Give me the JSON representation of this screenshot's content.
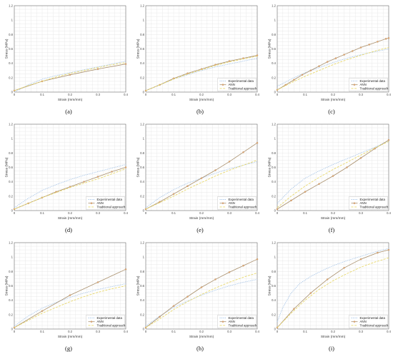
{
  "figure": {
    "colors": {
      "experimental": "#9fc0e6",
      "ann": "#a88e6a",
      "ann_marker": "#e9a56c",
      "traditional": "#e8d86c",
      "grid": "#e3e3e3",
      "axis": "#555555"
    }
  },
  "chart_data": [
    {
      "type": "line",
      "panel": "(a)",
      "xlabel": "Strain (mm/mm)",
      "ylabel": "Stress (MPa)",
      "xlim": [
        0,
        0.4
      ],
      "ylim": [
        0,
        1.2
      ],
      "xticks": [
        "0",
        "0.1",
        "0.2",
        "0.3",
        "0.4"
      ],
      "yticks": [
        "0",
        "0.2",
        "0.4",
        "0.6",
        "0.8",
        "1",
        "1.2"
      ],
      "grid": true,
      "legend": "none",
      "series": [
        {
          "name": "Experimental data",
          "style": "dotted",
          "x": [
            0,
            0.05,
            0.1,
            0.15,
            0.2,
            0.25,
            0.3,
            0.35,
            0.4
          ],
          "y": [
            0,
            0.1,
            0.18,
            0.23,
            0.27,
            0.31,
            0.35,
            0.39,
            0.43
          ]
        },
        {
          "name": "ANN",
          "style": "solid-marker",
          "x": [
            0,
            0.1,
            0.2,
            0.3,
            0.4
          ],
          "y": [
            0.02,
            0.15,
            0.24,
            0.32,
            0.39
          ]
        },
        {
          "name": "Traditional approach",
          "style": "dashed",
          "x": [
            0,
            0.05,
            0.1,
            0.15,
            0.2,
            0.25,
            0.3,
            0.35,
            0.4
          ],
          "y": [
            0.02,
            0.09,
            0.15,
            0.21,
            0.26,
            0.3,
            0.34,
            0.38,
            0.41
          ]
        }
      ]
    },
    {
      "type": "line",
      "panel": "(b)",
      "xlabel": "Strain (mm/mm)",
      "ylabel": "Stress (MPa)",
      "xlim": [
        0,
        0.4
      ],
      "ylim": [
        0,
        1.2
      ],
      "xticks": [
        "0",
        "0.1",
        "0.2",
        "0.3",
        "0.4"
      ],
      "yticks": [
        "0",
        "0.2",
        "0.4",
        "0.6",
        "0.8",
        "1",
        "1.2"
      ],
      "grid": true,
      "legend": "bottom-right",
      "series": [
        {
          "name": "Experimental data",
          "style": "dotted",
          "x": [
            0,
            0.05,
            0.1,
            0.15,
            0.2,
            0.25,
            0.3,
            0.35,
            0.4
          ],
          "y": [
            0.02,
            0.1,
            0.18,
            0.24,
            0.3,
            0.35,
            0.39,
            0.43,
            0.47
          ]
        },
        {
          "name": "ANN",
          "style": "solid-marker",
          "x": [
            0,
            0.05,
            0.1,
            0.15,
            0.2,
            0.25,
            0.3,
            0.35,
            0.4
          ],
          "y": [
            0.02,
            0.1,
            0.19,
            0.26,
            0.32,
            0.38,
            0.43,
            0.47,
            0.51
          ]
        },
        {
          "name": "Traditional approach",
          "style": "dashed",
          "x": [
            0,
            0.05,
            0.1,
            0.15,
            0.2,
            0.25,
            0.3,
            0.35,
            0.4
          ],
          "y": [
            0.02,
            0.1,
            0.18,
            0.25,
            0.31,
            0.37,
            0.42,
            0.46,
            0.5
          ]
        }
      ]
    },
    {
      "type": "line",
      "panel": "(c)",
      "xlabel": "Strain (mm/mm)",
      "ylabel": "Stress (MPa)",
      "xlim": [
        0,
        0.4
      ],
      "ylim": [
        0,
        1.2
      ],
      "xticks": [
        "0",
        "0.1",
        "0.2",
        "0.3",
        "0.4"
      ],
      "yticks": [
        "0",
        "0.2",
        "0.4",
        "0.6",
        "0.8",
        "1",
        "1.2"
      ],
      "grid": true,
      "legend": "bottom-right",
      "series": [
        {
          "name": "Experimental data",
          "style": "dotted",
          "x": [
            0,
            0.05,
            0.1,
            0.15,
            0.2,
            0.25,
            0.3,
            0.35,
            0.4
          ],
          "y": [
            0.08,
            0.18,
            0.27,
            0.34,
            0.41,
            0.47,
            0.52,
            0.56,
            0.6
          ]
        },
        {
          "name": "ANN",
          "style": "solid-marker",
          "x": [
            0,
            0.03,
            0.06,
            0.09,
            0.12,
            0.15,
            0.18,
            0.21,
            0.24,
            0.27,
            0.3,
            0.33,
            0.36,
            0.39,
            0.4
          ],
          "y": [
            0.03,
            0.1,
            0.17,
            0.24,
            0.3,
            0.36,
            0.42,
            0.47,
            0.52,
            0.57,
            0.62,
            0.66,
            0.7,
            0.74,
            0.75
          ]
        },
        {
          "name": "Traditional approach",
          "style": "dashed",
          "x": [
            0,
            0.05,
            0.1,
            0.15,
            0.2,
            0.25,
            0.3,
            0.35,
            0.4
          ],
          "y": [
            0.03,
            0.13,
            0.22,
            0.3,
            0.38,
            0.45,
            0.51,
            0.57,
            0.62
          ]
        }
      ]
    },
    {
      "type": "line",
      "panel": "(d)",
      "xlabel": "Strain (mm/mm)",
      "ylabel": "Stress (MPa)",
      "xlim": [
        0,
        0.4
      ],
      "ylim": [
        0,
        1.2
      ],
      "xticks": [
        "0",
        "0.1",
        "0.2",
        "0.3",
        "0.4"
      ],
      "yticks": [
        "0",
        "0.2",
        "0.4",
        "0.6",
        "0.8",
        "1",
        "1.2"
      ],
      "grid": true,
      "legend": "bottom-right",
      "series": [
        {
          "name": "Experimental data",
          "style": "dotted",
          "x": [
            0,
            0.05,
            0.1,
            0.15,
            0.2,
            0.25,
            0.3,
            0.35,
            0.4
          ],
          "y": [
            0.04,
            0.17,
            0.28,
            0.36,
            0.43,
            0.49,
            0.54,
            0.59,
            0.64
          ]
        },
        {
          "name": "ANN",
          "style": "solid-marker",
          "x": [
            0,
            0.05,
            0.1,
            0.15,
            0.2,
            0.25,
            0.3,
            0.35,
            0.4
          ],
          "y": [
            0.02,
            0.1,
            0.18,
            0.26,
            0.33,
            0.4,
            0.47,
            0.54,
            0.6
          ]
        },
        {
          "name": "Traditional approach",
          "style": "dashed",
          "x": [
            0,
            0.05,
            0.1,
            0.15,
            0.2,
            0.25,
            0.3,
            0.35,
            0.4
          ],
          "y": [
            0.02,
            0.1,
            0.18,
            0.25,
            0.32,
            0.38,
            0.44,
            0.51,
            0.58
          ]
        }
      ]
    },
    {
      "type": "line",
      "panel": "(e)",
      "xlabel": "Strain (mm/mm)",
      "ylabel": "Stress (MPa)",
      "xlim": [
        0,
        0.4
      ],
      "ylim": [
        0,
        1.2
      ],
      "xticks": [
        "0",
        "0.1",
        "0.2",
        "0.3",
        "0.4"
      ],
      "yticks": [
        "0",
        "0.2",
        "0.4",
        "0.6",
        "0.8",
        "1",
        "1.2"
      ],
      "grid": true,
      "legend": "bottom-right",
      "series": [
        {
          "name": "Experimental data",
          "style": "dotted",
          "x": [
            0,
            0.05,
            0.1,
            0.15,
            0.2,
            0.25,
            0.3,
            0.35,
            0.4
          ],
          "y": [
            0.04,
            0.18,
            0.29,
            0.38,
            0.45,
            0.52,
            0.58,
            0.63,
            0.68
          ]
        },
        {
          "name": "ANN",
          "style": "solid-marker",
          "x": [
            0,
            0.05,
            0.1,
            0.15,
            0.2,
            0.25,
            0.3,
            0.35,
            0.4
          ],
          "y": [
            0.02,
            0.12,
            0.23,
            0.34,
            0.45,
            0.56,
            0.68,
            0.81,
            0.94
          ]
        },
        {
          "name": "Traditional approach",
          "style": "dashed",
          "x": [
            0,
            0.05,
            0.1,
            0.15,
            0.2,
            0.25,
            0.3,
            0.35,
            0.4
          ],
          "y": [
            0.02,
            0.11,
            0.2,
            0.3,
            0.39,
            0.48,
            0.56,
            0.63,
            0.7
          ]
        }
      ]
    },
    {
      "type": "line",
      "panel": "(f)",
      "xlabel": "Strain (mm/mm)",
      "ylabel": "Stress (MPa)",
      "xlim": [
        0,
        0.4
      ],
      "ylim": [
        0,
        1.2
      ],
      "xticks": [
        "0",
        "0.1",
        "0.2",
        "0.3",
        "0.4"
      ],
      "yticks": [
        "0",
        "0.2",
        "0.4",
        "0.6",
        "0.8",
        "1",
        "1.2"
      ],
      "grid": true,
      "legend": "bottom-right",
      "series": [
        {
          "name": "Experimental data",
          "style": "dotted",
          "x": [
            0,
            0.05,
            0.1,
            0.15,
            0.2,
            0.25,
            0.3,
            0.35,
            0.4
          ],
          "y": [
            0.1,
            0.3,
            0.45,
            0.55,
            0.64,
            0.72,
            0.8,
            0.88,
            0.97
          ]
        },
        {
          "name": "ANN",
          "style": "solid-marker",
          "x": [
            0,
            0.05,
            0.1,
            0.15,
            0.2,
            0.25,
            0.3,
            0.35,
            0.4
          ],
          "y": [
            0.02,
            0.14,
            0.26,
            0.37,
            0.48,
            0.6,
            0.73,
            0.86,
            0.98
          ]
        },
        {
          "name": "Traditional approach",
          "style": "dashed",
          "x": [
            0,
            0.05,
            0.1,
            0.15,
            0.2,
            0.25,
            0.3,
            0.35,
            0.4
          ],
          "y": [
            0.04,
            0.2,
            0.34,
            0.46,
            0.57,
            0.67,
            0.77,
            0.87,
            0.96
          ]
        }
      ]
    },
    {
      "type": "line",
      "panel": "(g)",
      "xlabel": "Strain (mm/mm)",
      "ylabel": "Stress (MPa)",
      "xlim": [
        0,
        0.4
      ],
      "ylim": [
        0,
        1.2
      ],
      "xticks": [
        "0",
        "0.1",
        "0.2",
        "0.3",
        "0.4"
      ],
      "yticks": [
        "0",
        "0.2",
        "0.4",
        "0.6",
        "0.8",
        "1",
        "1.2"
      ],
      "grid": true,
      "legend": "bottom-right",
      "series": [
        {
          "name": "Experimental data",
          "style": "dotted",
          "x": [
            0,
            0.05,
            0.1,
            0.15,
            0.2,
            0.25,
            0.3,
            0.35,
            0.4
          ],
          "y": [
            0.04,
            0.18,
            0.29,
            0.37,
            0.44,
            0.5,
            0.55,
            0.59,
            0.63
          ]
        },
        {
          "name": "ANN",
          "style": "solid-marker",
          "x": [
            0,
            0.1,
            0.2,
            0.3,
            0.4
          ],
          "y": [
            0.02,
            0.25,
            0.47,
            0.65,
            0.83
          ]
        },
        {
          "name": "Traditional approach",
          "style": "dashed",
          "x": [
            0,
            0.05,
            0.1,
            0.15,
            0.2,
            0.25,
            0.3,
            0.35,
            0.4
          ],
          "y": [
            0.02,
            0.12,
            0.22,
            0.3,
            0.38,
            0.45,
            0.51,
            0.56,
            0.6
          ]
        }
      ]
    },
    {
      "type": "line",
      "panel": "(h)",
      "xlabel": "Strain (mm/mm)",
      "ylabel": "Stress (MPa)",
      "xlim": [
        0,
        0.4
      ],
      "ylim": [
        0,
        1.2
      ],
      "xticks": [
        "0",
        "0.1",
        "0.2",
        "0.3",
        "0.4"
      ],
      "yticks": [
        "0",
        "0.2",
        "0.4",
        "0.6",
        "0.8",
        "1",
        "1.2"
      ],
      "grid": true,
      "legend": "bottom-right",
      "series": [
        {
          "name": "Experimental data",
          "style": "dotted",
          "x": [
            0,
            0.05,
            0.1,
            0.15,
            0.2,
            0.25,
            0.3,
            0.35,
            0.4
          ],
          "y": [
            0.04,
            0.18,
            0.3,
            0.39,
            0.47,
            0.54,
            0.6,
            0.65,
            0.69
          ]
        },
        {
          "name": "ANN",
          "style": "solid-marker",
          "x": [
            0,
            0.05,
            0.1,
            0.15,
            0.2,
            0.25,
            0.3,
            0.35,
            0.4
          ],
          "y": [
            0.02,
            0.17,
            0.32,
            0.45,
            0.58,
            0.69,
            0.79,
            0.88,
            0.97
          ]
        },
        {
          "name": "Traditional approach",
          "style": "dashed",
          "x": [
            0,
            0.05,
            0.1,
            0.15,
            0.2,
            0.25,
            0.3,
            0.35,
            0.4
          ],
          "y": [
            0.02,
            0.14,
            0.27,
            0.38,
            0.48,
            0.57,
            0.65,
            0.72,
            0.78
          ]
        }
      ]
    },
    {
      "type": "line",
      "panel": "(i)",
      "xlabel": "Strain (mm/mm)",
      "ylabel": "Stress (MPa)",
      "xlim": [
        0,
        0.4
      ],
      "ylim": [
        0,
        1.2
      ],
      "xticks": [
        "0",
        "0.1",
        "0.2",
        "0.3",
        "0.4"
      ],
      "yticks": [
        "0",
        "0.2",
        "0.4",
        "0.6",
        "0.8",
        "1",
        "1.2"
      ],
      "grid": true,
      "legend": "bottom-right",
      "series": [
        {
          "name": "Experimental data",
          "style": "dotted",
          "x": [
            0,
            0.02,
            0.05,
            0.08,
            0.12,
            0.16,
            0.2,
            0.25,
            0.3,
            0.35,
            0.4
          ],
          "y": [
            0.1,
            0.3,
            0.5,
            0.63,
            0.73,
            0.81,
            0.88,
            0.95,
            1.01,
            1.07,
            1.12
          ]
        },
        {
          "name": "ANN",
          "style": "solid-marker",
          "x": [
            0,
            0.06,
            0.12,
            0.18,
            0.24,
            0.3,
            0.36,
            0.4
          ],
          "y": [
            0.02,
            0.28,
            0.5,
            0.69,
            0.85,
            0.97,
            1.06,
            1.1
          ]
        },
        {
          "name": "Traditional approach",
          "style": "dashed",
          "x": [
            0,
            0.05,
            0.1,
            0.15,
            0.2,
            0.25,
            0.3,
            0.35,
            0.4
          ],
          "y": [
            0.02,
            0.22,
            0.4,
            0.55,
            0.67,
            0.77,
            0.86,
            0.93,
            0.99
          ]
        }
      ]
    }
  ]
}
